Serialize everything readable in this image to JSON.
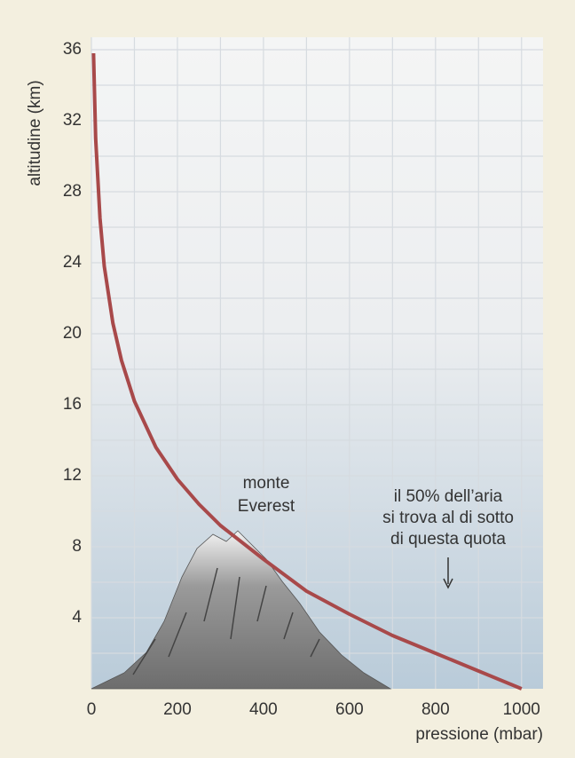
{
  "chart_data": {
    "type": "line",
    "x_label": "pressione (mbar)",
    "y_label": "altitudine (km)",
    "x": [
      1000,
      900,
      800,
      700,
      600,
      500,
      400,
      300,
      250,
      200,
      150,
      100,
      70,
      50,
      30,
      20,
      10,
      5
    ],
    "values": [
      0,
      1,
      2,
      3,
      4.2,
      5.5,
      7.3,
      9.2,
      10.4,
      11.8,
      13.6,
      16.2,
      18.5,
      20.6,
      23.8,
      26.5,
      31,
      35.8
    ],
    "color": "#a8494a",
    "xlim": [
      0,
      1050
    ],
    "ylim": [
      0,
      36.7
    ],
    "xticks": [
      0,
      200,
      400,
      600,
      800,
      1000
    ],
    "yticks": [
      4,
      8,
      12,
      16,
      20,
      24,
      28,
      32,
      36
    ],
    "xgrid": [
      0,
      100,
      200,
      300,
      400,
      500,
      600,
      700,
      800,
      900,
      1000
    ],
    "ygrid": [
      2,
      4,
      6,
      8,
      10,
      12,
      14,
      16,
      18,
      20,
      22,
      24,
      26,
      28,
      30,
      32,
      34,
      36
    ],
    "grid": true,
    "annotations": [
      {
        "lines": [
          "monte",
          "Everest"
        ]
      },
      {
        "lines": [
          "il 50% dell’aria",
          "si trova al di sotto",
          "di questa quota"
        ]
      }
    ]
  }
}
